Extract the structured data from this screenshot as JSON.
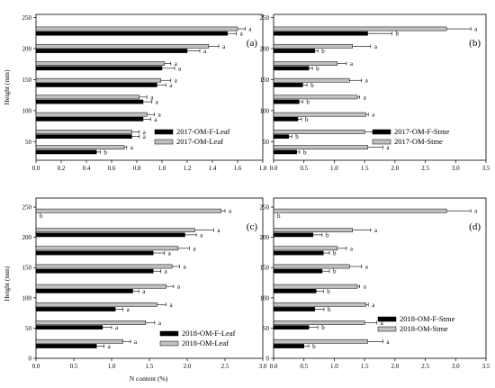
{
  "figure": {
    "y_axis_label_top": "Height (mm)",
    "y_axis_label_bottom": "Height (mm)",
    "x_axis_label": "N content (%)"
  },
  "chart_data": [
    {
      "type": "bar",
      "orientation": "horizontal",
      "panel_label": "(a)",
      "xlim": [
        0,
        1.8
      ],
      "xticks": [
        "0.0",
        "0.2",
        "0.4",
        "0.6",
        "0.8",
        "1.0",
        "1.2",
        "1.4",
        "1.6",
        "1.8"
      ],
      "ylim": [
        20,
        255
      ],
      "yticks": [
        "50",
        "100",
        "150",
        "200",
        "250"
      ],
      "legend_position": "bottom-right",
      "series": [
        {
          "name": "2017-OM-F-Leaf",
          "color": "#000000",
          "values": [
            0.48,
            0.76,
            0.85,
            0.85,
            0.96,
            1.0,
            1.2,
            1.52
          ],
          "errors": [
            0.03,
            0.06,
            0.06,
            0.07,
            0.07,
            0.1,
            0.1,
            0.07
          ],
          "significance": [
            "b",
            "a",
            "a",
            "a",
            "a",
            "a",
            "a",
            "a"
          ]
        },
        {
          "name": "2017-OM-Leaf",
          "color": "#c0c0c0",
          "values": [
            0.7,
            0.76,
            0.88,
            0.82,
            0.99,
            1.02,
            1.37,
            1.6
          ],
          "errors": [
            0.02,
            0.06,
            0.06,
            0.06,
            0.08,
            0.05,
            0.08,
            0.06
          ],
          "significance": [
            "a",
            "a",
            "a",
            "a",
            "a",
            "a",
            "a",
            "a"
          ]
        }
      ],
      "heights": [
        37,
        62,
        90,
        118,
        145,
        172,
        200,
        228
      ]
    },
    {
      "type": "bar",
      "orientation": "horizontal",
      "panel_label": "(b)",
      "xlim": [
        0,
        3.5
      ],
      "xticks": [
        "0.0",
        "0.5",
        "1.0",
        "1.5",
        "2.0",
        "2.5",
        "3.0",
        "3.5"
      ],
      "ylim": [
        20,
        255
      ],
      "yticks": [
        "50",
        "100",
        "150",
        "200",
        "250"
      ],
      "legend_position": "bottom-right",
      "series": [
        {
          "name": "2017-OM-F-Stme",
          "color": "#000000",
          "values": [
            0.38,
            0.25,
            0.4,
            0.42,
            0.48,
            0.58,
            0.68,
            1.55
          ],
          "errors": [
            0.05,
            0.05,
            0.06,
            0.06,
            0.07,
            0.06,
            0.05,
            0.4
          ],
          "significance": [
            "b",
            "b",
            "b",
            "b",
            "b",
            "b",
            "b",
            "b"
          ]
        },
        {
          "name": "2017-OM-Stme",
          "color": "#c0c0c0",
          "values": [
            1.55,
            1.5,
            1.52,
            1.38,
            1.25,
            1.05,
            1.3,
            2.85
          ],
          "errors": [
            0.25,
            0.2,
            0.04,
            0.04,
            0.2,
            0.15,
            0.3,
            0.4
          ],
          "significance": [
            "a",
            "a",
            "a",
            "a",
            "a",
            "a",
            "a",
            "a"
          ]
        }
      ],
      "heights": [
        37,
        62,
        90,
        118,
        145,
        172,
        200,
        228
      ]
    },
    {
      "type": "bar",
      "orientation": "horizontal",
      "panel_label": "(c)",
      "xlim": [
        0,
        3.0
      ],
      "xticks": [
        "0.0",
        "0.5",
        "1.0",
        "1.5",
        "2.0",
        "2.5",
        "3.0"
      ],
      "ylim": [
        0,
        265
      ],
      "yticks": [
        "0",
        "50",
        "100",
        "150",
        "200",
        "250"
      ],
      "legend_position": "bottom-right",
      "series": [
        {
          "name": "2018-OM-F-Leaf",
          "color": "#000000",
          "values": [
            0.8,
            0.88,
            1.05,
            1.28,
            1.55,
            1.55,
            1.97,
            0.0
          ],
          "errors": [
            0.1,
            0.12,
            0.1,
            0.08,
            0.1,
            0.15,
            0.15,
            0.0
          ],
          "significance": [
            "a",
            "a",
            "a",
            "a",
            "a",
            "a",
            "a",
            "b"
          ]
        },
        {
          "name": "2018-OM-Leaf",
          "color": "#c0c0c0",
          "values": [
            1.15,
            1.45,
            1.6,
            1.72,
            1.8,
            1.88,
            2.1,
            2.45
          ],
          "errors": [
            0.1,
            0.12,
            0.12,
            0.1,
            0.1,
            0.15,
            0.25,
            0.05
          ],
          "significance": [
            "a",
            "a",
            "a",
            "a",
            "a",
            "a",
            "a",
            "a"
          ]
        }
      ],
      "heights": [
        24,
        55,
        85,
        115,
        148,
        178,
        208,
        240
      ]
    },
    {
      "type": "bar",
      "orientation": "horizontal",
      "panel_label": "(d)",
      "xlim": [
        0,
        3.5
      ],
      "xticks": [
        "0.0",
        "0.5",
        "1.0",
        "1.5",
        "2.0",
        "2.5",
        "3.0",
        "3.5"
      ],
      "ylim": [
        0,
        265
      ],
      "yticks": [
        "0",
        "50",
        "100",
        "150",
        "200",
        "250"
      ],
      "legend_position": "bottom-right",
      "series": [
        {
          "name": "2018-OM-F-Stme",
          "color": "#000000",
          "values": [
            0.5,
            0.58,
            0.68,
            0.7,
            0.8,
            0.82,
            0.65,
            0.0
          ],
          "errors": [
            0.08,
            0.15,
            0.15,
            0.12,
            0.12,
            0.1,
            0.15,
            0.0
          ],
          "significance": [
            "b",
            "b",
            "b",
            "b",
            "b",
            "b",
            "b",
            "b"
          ]
        },
        {
          "name": "2018-OM-Stme",
          "color": "#c0c0c0",
          "values": [
            1.55,
            1.5,
            1.52,
            1.38,
            1.25,
            1.05,
            1.3,
            2.85
          ],
          "errors": [
            0.25,
            0.2,
            0.04,
            0.04,
            0.2,
            0.15,
            0.3,
            0.4
          ],
          "significance": [
            "a",
            "a",
            "a",
            "a",
            "a",
            "a",
            "a",
            "a"
          ]
        }
      ],
      "heights": [
        24,
        55,
        85,
        115,
        148,
        178,
        208,
        240
      ]
    }
  ]
}
